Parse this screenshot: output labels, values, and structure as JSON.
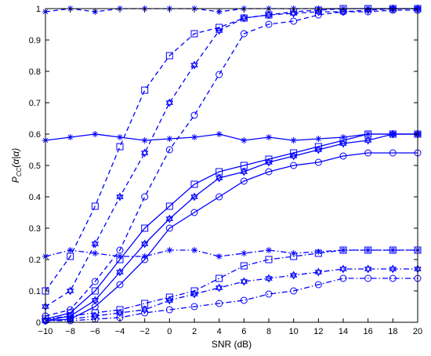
{
  "chart_data": {
    "type": "line",
    "title": "",
    "xlabel": "SNR (dB)",
    "ylabel": "Pcc(α|α)",
    "ylabel_parts": {
      "main": "P",
      "sub": "CC",
      "rest": "(α|α)"
    },
    "xlim": [
      -10,
      20
    ],
    "ylim": [
      0,
      1
    ],
    "xticks": [
      -10,
      -8,
      -6,
      -4,
      -2,
      0,
      2,
      4,
      6,
      8,
      10,
      12,
      14,
      16,
      18,
      20
    ],
    "yticks": [
      0,
      0.1,
      0.2,
      0.3,
      0.4,
      0.5,
      0.6,
      0.7,
      0.8,
      0.9,
      1
    ],
    "grid": false,
    "color": "#0000ff",
    "series": [
      {
        "group": "dashed",
        "marker": "asterisk",
        "dash": "dashed",
        "x": [
          -10,
          -8,
          -6,
          -4,
          -2,
          0,
          2,
          4,
          6,
          8,
          10,
          12,
          14,
          16,
          18,
          20
        ],
        "y": [
          0.99,
          1.0,
          0.99,
          1.0,
          1.0,
          1.0,
          1.0,
          0.99,
          1.0,
          1.0,
          1.0,
          1.0,
          1.0,
          1.0,
          1.0,
          1.0
        ]
      },
      {
        "group": "dashed",
        "marker": "square",
        "dash": "dashed",
        "x": [
          -10,
          -8,
          -6,
          -4,
          -2,
          0,
          2,
          4,
          6,
          8,
          10,
          12,
          14,
          16,
          18,
          20
        ],
        "y": [
          0.1,
          0.21,
          0.37,
          0.56,
          0.74,
          0.85,
          0.92,
          0.94,
          0.97,
          0.98,
          0.99,
          0.995,
          1.0,
          1.0,
          1.0,
          1.0
        ]
      },
      {
        "group": "dashed",
        "marker": "hexagram",
        "dash": "dashed",
        "x": [
          -10,
          -8,
          -6,
          -4,
          -2,
          0,
          2,
          4,
          6,
          8,
          10,
          12,
          14,
          16,
          18,
          20
        ],
        "y": [
          0.05,
          0.1,
          0.25,
          0.4,
          0.54,
          0.7,
          0.82,
          0.93,
          0.97,
          0.98,
          0.985,
          0.99,
          0.99,
          0.995,
          1.0,
          1.0
        ]
      },
      {
        "group": "dashed",
        "marker": "circle",
        "dash": "dashed",
        "x": [
          -10,
          -8,
          -6,
          -4,
          -2,
          0,
          2,
          4,
          6,
          8,
          10,
          12,
          14,
          16,
          18,
          20
        ],
        "y": [
          0.02,
          0.04,
          0.13,
          0.23,
          0.4,
          0.55,
          0.66,
          0.79,
          0.92,
          0.95,
          0.96,
          0.98,
          0.99,
          0.99,
          0.995,
          0.995
        ]
      },
      {
        "group": "solid",
        "marker": "asterisk",
        "dash": "solid",
        "x": [
          -10,
          -8,
          -6,
          -4,
          -2,
          0,
          2,
          4,
          6,
          8,
          10,
          12,
          14,
          16,
          18,
          20
        ],
        "y": [
          0.58,
          0.59,
          0.6,
          0.59,
          0.58,
          0.585,
          0.59,
          0.6,
          0.58,
          0.59,
          0.58,
          0.585,
          0.59,
          0.6,
          0.6,
          0.6
        ]
      },
      {
        "group": "solid",
        "marker": "square",
        "dash": "solid",
        "x": [
          -10,
          -8,
          -6,
          -4,
          -2,
          0,
          2,
          4,
          6,
          8,
          10,
          12,
          14,
          16,
          18,
          20
        ],
        "y": [
          0.01,
          0.03,
          0.1,
          0.2,
          0.3,
          0.37,
          0.44,
          0.48,
          0.5,
          0.52,
          0.54,
          0.56,
          0.58,
          0.6,
          0.6,
          0.6
        ]
      },
      {
        "group": "solid",
        "marker": "hexagram",
        "dash": "solid",
        "x": [
          -10,
          -8,
          -6,
          -4,
          -2,
          0,
          2,
          4,
          6,
          8,
          10,
          12,
          14,
          16,
          18,
          20
        ],
        "y": [
          0.005,
          0.02,
          0.07,
          0.16,
          0.25,
          0.33,
          0.4,
          0.46,
          0.48,
          0.51,
          0.53,
          0.55,
          0.57,
          0.58,
          0.6,
          0.6
        ]
      },
      {
        "group": "solid",
        "marker": "circle",
        "dash": "solid",
        "x": [
          -10,
          -8,
          -6,
          -4,
          -2,
          0,
          2,
          4,
          6,
          8,
          10,
          12,
          14,
          16,
          18,
          20
        ],
        "y": [
          0.005,
          0.01,
          0.05,
          0.12,
          0.2,
          0.3,
          0.35,
          0.4,
          0.45,
          0.48,
          0.5,
          0.51,
          0.53,
          0.54,
          0.54,
          0.54
        ]
      },
      {
        "group": "dashdot",
        "marker": "asterisk",
        "dash": "dashdot",
        "x": [
          -10,
          -8,
          -6,
          -4,
          -2,
          0,
          2,
          4,
          6,
          8,
          10,
          12,
          14,
          16,
          18,
          20
        ],
        "y": [
          0.21,
          0.23,
          0.22,
          0.21,
          0.21,
          0.23,
          0.23,
          0.21,
          0.22,
          0.23,
          0.22,
          0.225,
          0.23,
          0.23,
          0.23,
          0.23
        ]
      },
      {
        "group": "dashdot",
        "marker": "square",
        "dash": "dashdot",
        "x": [
          -10,
          -8,
          -6,
          -4,
          -2,
          0,
          2,
          4,
          6,
          8,
          10,
          12,
          14,
          16,
          18,
          20
        ],
        "y": [
          0.01,
          0.02,
          0.03,
          0.04,
          0.06,
          0.08,
          0.1,
          0.14,
          0.18,
          0.2,
          0.21,
          0.22,
          0.23,
          0.23,
          0.23,
          0.23
        ]
      },
      {
        "group": "dashdot",
        "marker": "hexagram",
        "dash": "dashdot",
        "x": [
          -10,
          -8,
          -6,
          -4,
          -2,
          0,
          2,
          4,
          6,
          8,
          10,
          12,
          14,
          16,
          18,
          20
        ],
        "y": [
          0.005,
          0.01,
          0.02,
          0.03,
          0.04,
          0.07,
          0.09,
          0.11,
          0.13,
          0.14,
          0.15,
          0.16,
          0.17,
          0.17,
          0.17,
          0.17
        ]
      },
      {
        "group": "dashdot",
        "marker": "circle",
        "dash": "dashdot",
        "x": [
          -10,
          -8,
          -6,
          -4,
          -2,
          0,
          2,
          4,
          6,
          8,
          10,
          12,
          14,
          16,
          18,
          20
        ],
        "y": [
          0.005,
          0.005,
          0.01,
          0.015,
          0.03,
          0.04,
          0.05,
          0.06,
          0.07,
          0.09,
          0.1,
          0.12,
          0.14,
          0.14,
          0.14,
          0.14
        ]
      }
    ]
  }
}
